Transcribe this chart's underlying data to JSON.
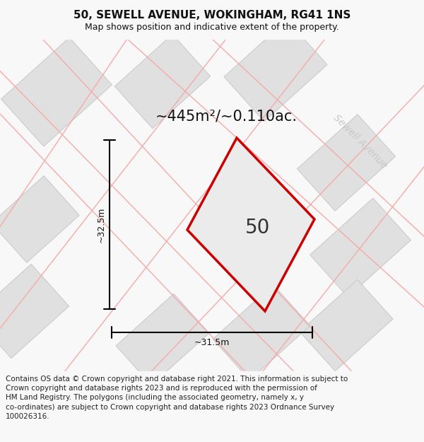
{
  "title": "50, SEWELL AVENUE, WOKINGHAM, RG41 1NS",
  "subtitle": "Map shows position and indicative extent of the property.",
  "area_label": "~445m²/~0.110ac.",
  "property_number": "50",
  "dim_width": "~31.5m",
  "dim_height": "~32.5m",
  "street_name": "Sewell Avenue",
  "footer_lines": [
    "Contains OS data © Crown copyright and database right 2021. This information is subject to Crown copyright and database rights 2023 and is reproduced with the permission of",
    "HM Land Registry. The polygons (including the associated geometry, namely x, y",
    "co-ordinates) are subject to Crown copyright and database rights 2023 Ordnance Survey",
    "100026316."
  ],
  "bg_color": "#f8f8f8",
  "map_bg": "#ffffff",
  "property_fill": "#ebebeb",
  "property_edge": "#cc0000",
  "neighbor_fill": "#e0e0e0",
  "neighbor_edge": "#cccccc",
  "road_line_color": "#f5aaaa",
  "title_fontsize": 11,
  "subtitle_fontsize": 9,
  "footer_fontsize": 7.5,
  "area_fontsize": 15,
  "prop_num_fontsize": 20,
  "dim_fontsize": 9,
  "street_fontsize": 10
}
